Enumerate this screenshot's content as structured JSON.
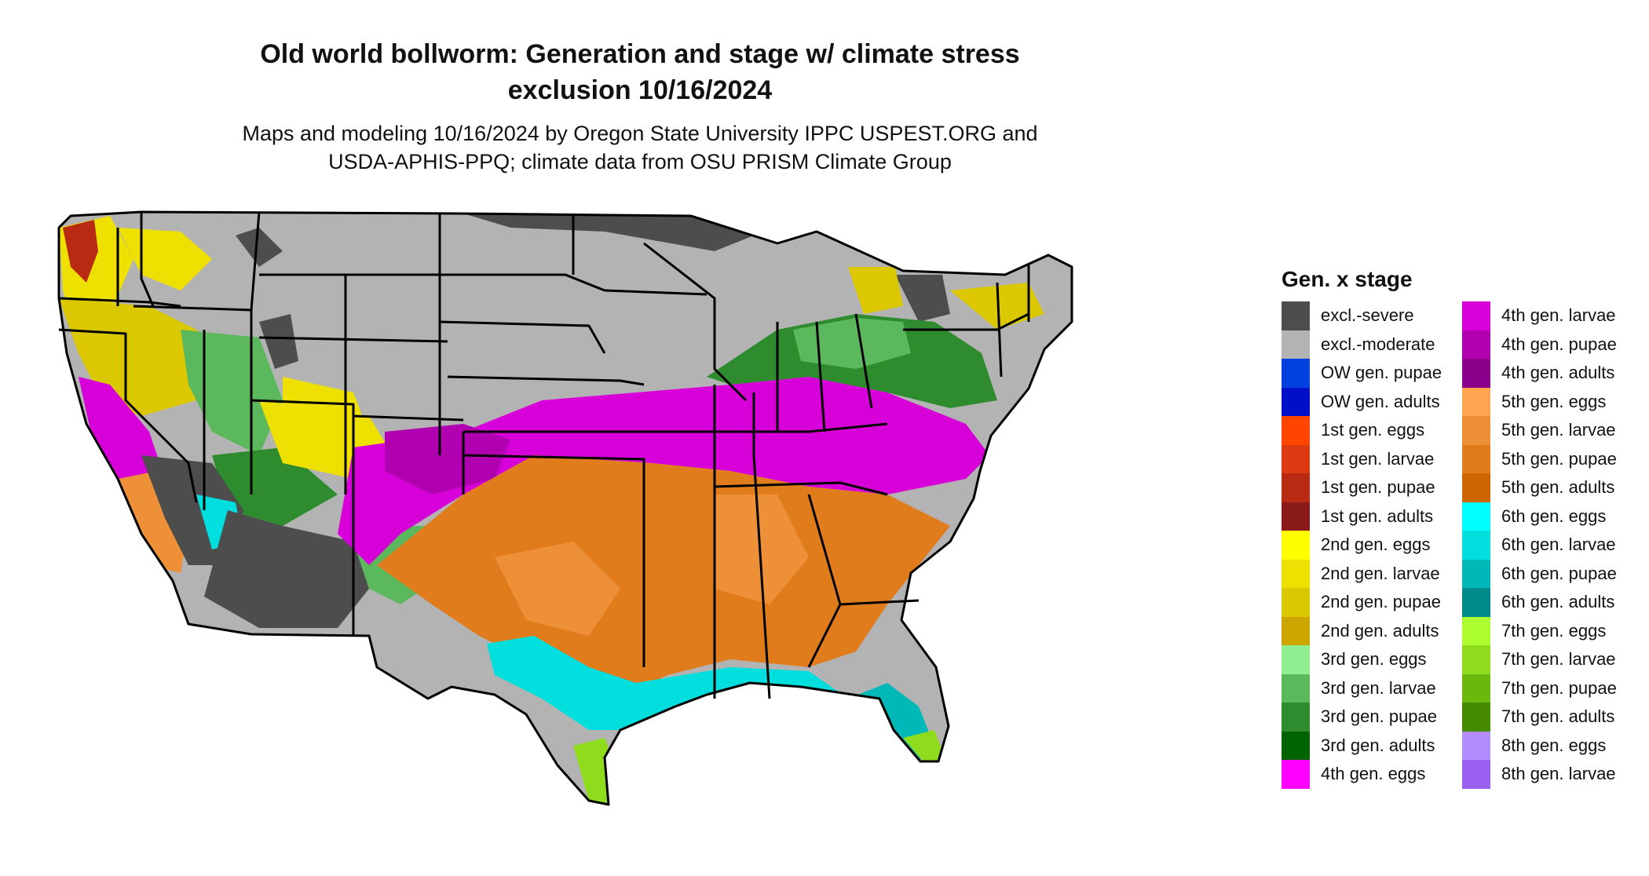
{
  "header": {
    "title_line1": "Old world bollworm: Generation and stage w/ climate stress",
    "title_line2": "exclusion 10/16/2024",
    "subtitle_line1": "Maps and modeling 10/16/2024 by Oregon State University IPPC USPEST.ORG and",
    "subtitle_line2": "USDA-APHIS-PPQ; climate data from OSU PRISM Climate Group"
  },
  "legend": {
    "title": "Gen. x stage",
    "column1": [
      {
        "label": "excl.-severe",
        "color": "#4d4d4d"
      },
      {
        "label": "excl.-moderate",
        "color": "#b3b3b3"
      },
      {
        "label": "OW gen. pupae",
        "color": "#0040e0"
      },
      {
        "label": "OW gen. adults",
        "color": "#0010c8"
      },
      {
        "label": "1st gen. eggs",
        "color": "#ff4500"
      },
      {
        "label": "1st gen. larvae",
        "color": "#dc3a10"
      },
      {
        "label": "1st gen. pupae",
        "color": "#b82a12"
      },
      {
        "label": "1st gen. adults",
        "color": "#8b1a1a"
      },
      {
        "label": "2nd gen. eggs",
        "color": "#ffff00"
      },
      {
        "label": "2nd gen. larvae",
        "color": "#eee000"
      },
      {
        "label": "2nd gen. pupae",
        "color": "#dcc800"
      },
      {
        "label": "2nd gen. adults",
        "color": "#cda700"
      },
      {
        "label": "3rd gen. eggs",
        "color": "#90ee90"
      },
      {
        "label": "3rd gen. larvae",
        "color": "#5cb85c"
      },
      {
        "label": "3rd gen. pupae",
        "color": "#2e8b2e"
      },
      {
        "label": "3rd gen. adults",
        "color": "#006400"
      },
      {
        "label": "4th gen. eggs",
        "color": "#ff00ff"
      }
    ],
    "column2": [
      {
        "label": "4th gen. larvae",
        "color": "#d800d8"
      },
      {
        "label": "4th gen. pupae",
        "color": "#b000b0"
      },
      {
        "label": "4th gen. adults",
        "color": "#8b008b"
      },
      {
        "label": "5th gen. eggs",
        "color": "#ffa54f"
      },
      {
        "label": "5th gen. larvae",
        "color": "#ee9038"
      },
      {
        "label": "5th gen. pupae",
        "color": "#e07c1c"
      },
      {
        "label": "5th gen. adults",
        "color": "#cd6600"
      },
      {
        "label": "6th gen. eggs",
        "color": "#00ffff"
      },
      {
        "label": "6th gen. larvae",
        "color": "#00dede"
      },
      {
        "label": "6th gen. pupae",
        "color": "#00b8b8"
      },
      {
        "label": "6th gen. adults",
        "color": "#008b8b"
      },
      {
        "label": "7th gen. eggs",
        "color": "#adff2f"
      },
      {
        "label": "7th gen. larvae",
        "color": "#8edc1c"
      },
      {
        "label": "7th gen. pupae",
        "color": "#6ab80c"
      },
      {
        "label": "7th gen. adults",
        "color": "#458b00"
      },
      {
        "label": "8th gen. eggs",
        "color": "#b08cff"
      },
      {
        "label": "8th gen. larvae",
        "color": "#9a60f0"
      }
    ]
  }
}
